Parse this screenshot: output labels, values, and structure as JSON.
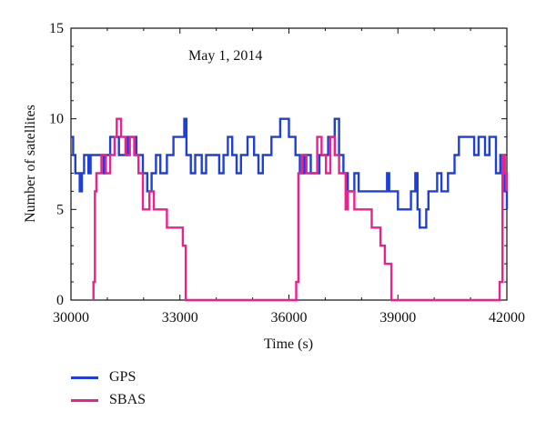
{
  "chart_data": {
    "type": "line",
    "annotation": "May 1, 2014",
    "xlabel": "Time (s)",
    "ylabel": "Number of satellites",
    "xlim": [
      30000,
      42000
    ],
    "ylim": [
      0,
      15
    ],
    "xticks": [
      30000,
      33000,
      36000,
      39000,
      42000
    ],
    "yticks": [
      0,
      5,
      10,
      15
    ],
    "grid": false,
    "legend_position": "bottom-left",
    "series": [
      {
        "name": "GPS",
        "color": "#1f3fd9",
        "points": [
          [
            30000,
            9
          ],
          [
            30060,
            8
          ],
          [
            30120,
            7
          ],
          [
            30240,
            6
          ],
          [
            30300,
            7
          ],
          [
            30360,
            8
          ],
          [
            30480,
            7
          ],
          [
            30540,
            8
          ],
          [
            30900,
            7
          ],
          [
            30960,
            8
          ],
          [
            31080,
            9
          ],
          [
            31320,
            8
          ],
          [
            31560,
            9
          ],
          [
            31800,
            8
          ],
          [
            31980,
            7
          ],
          [
            32100,
            6
          ],
          [
            32220,
            7
          ],
          [
            32340,
            8
          ],
          [
            32460,
            7
          ],
          [
            32640,
            8
          ],
          [
            32820,
            9
          ],
          [
            33120,
            10
          ],
          [
            33180,
            8
          ],
          [
            33300,
            7
          ],
          [
            33420,
            8
          ],
          [
            33600,
            7
          ],
          [
            33720,
            8
          ],
          [
            34080,
            7
          ],
          [
            34200,
            8
          ],
          [
            34320,
            9
          ],
          [
            34440,
            8
          ],
          [
            34560,
            7
          ],
          [
            34680,
            8
          ],
          [
            34860,
            9
          ],
          [
            35040,
            8
          ],
          [
            35160,
            7
          ],
          [
            35280,
            8
          ],
          [
            35520,
            9
          ],
          [
            35760,
            10
          ],
          [
            36000,
            9
          ],
          [
            36180,
            8
          ],
          [
            36300,
            7
          ],
          [
            36420,
            8
          ],
          [
            36600,
            7
          ],
          [
            36840,
            8
          ],
          [
            37080,
            9
          ],
          [
            37260,
            10
          ],
          [
            37380,
            8
          ],
          [
            37500,
            7
          ],
          [
            37620,
            6
          ],
          [
            37800,
            7
          ],
          [
            37920,
            6
          ],
          [
            38700,
            7
          ],
          [
            38760,
            6
          ],
          [
            39000,
            5
          ],
          [
            39360,
            6
          ],
          [
            39480,
            7
          ],
          [
            39540,
            5
          ],
          [
            39600,
            4
          ],
          [
            39780,
            5
          ],
          [
            39840,
            6
          ],
          [
            40080,
            7
          ],
          [
            40200,
            6
          ],
          [
            40380,
            7
          ],
          [
            40560,
            8
          ],
          [
            40680,
            9
          ],
          [
            41100,
            8
          ],
          [
            41220,
            9
          ],
          [
            41400,
            8
          ],
          [
            41520,
            9
          ],
          [
            41700,
            7
          ],
          [
            41820,
            8
          ],
          [
            41940,
            6
          ],
          [
            42000,
            5
          ]
        ]
      },
      {
        "name": "SBAS",
        "color": "#ee1f8e",
        "points": [
          [
            30620,
            0
          ],
          [
            30620,
            1
          ],
          [
            30660,
            6
          ],
          [
            30700,
            7
          ],
          [
            30840,
            8
          ],
          [
            30960,
            7
          ],
          [
            31080,
            8
          ],
          [
            31200,
            9
          ],
          [
            31260,
            10
          ],
          [
            31380,
            9
          ],
          [
            31500,
            8
          ],
          [
            31620,
            9
          ],
          [
            31740,
            8
          ],
          [
            31860,
            7
          ],
          [
            31980,
            5
          ],
          [
            32160,
            6
          ],
          [
            32280,
            5
          ],
          [
            32640,
            4
          ],
          [
            32880,
            4
          ],
          [
            33080,
            3
          ],
          [
            33160,
            0
          ],
          [
            36200,
            0
          ],
          [
            36200,
            1
          ],
          [
            36260,
            7
          ],
          [
            36360,
            8
          ],
          [
            36480,
            7
          ],
          [
            36780,
            9
          ],
          [
            36900,
            8
          ],
          [
            37020,
            7
          ],
          [
            37140,
            9
          ],
          [
            37260,
            8
          ],
          [
            37380,
            7
          ],
          [
            37560,
            5
          ],
          [
            37620,
            6
          ],
          [
            37800,
            5
          ],
          [
            38280,
            4
          ],
          [
            38520,
            3
          ],
          [
            38640,
            2
          ],
          [
            38760,
            2
          ],
          [
            38820,
            0
          ],
          [
            41800,
            0
          ],
          [
            41800,
            1
          ],
          [
            41880,
            8
          ],
          [
            41940,
            7
          ],
          [
            42000,
            6
          ]
        ]
      }
    ]
  }
}
